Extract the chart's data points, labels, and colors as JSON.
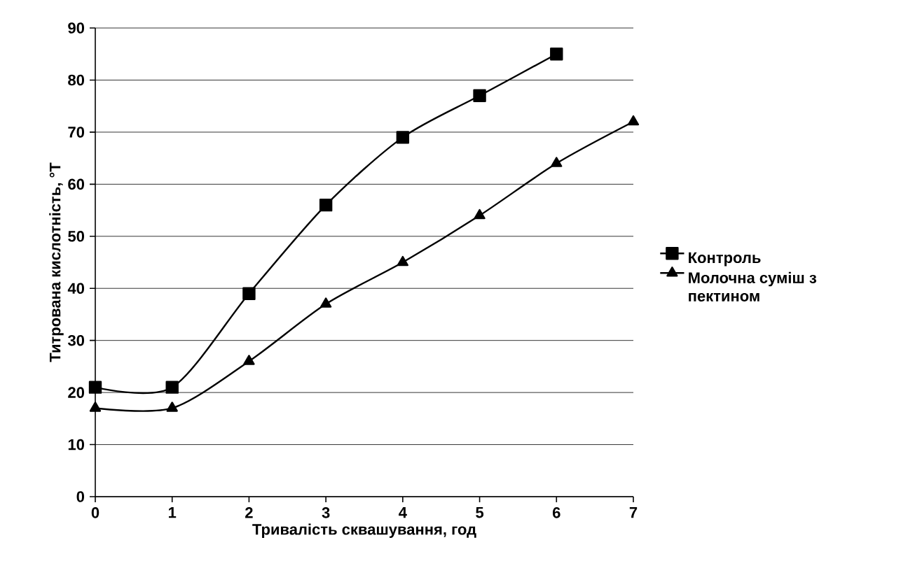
{
  "chart_data": {
    "type": "line",
    "xlabel": "Тривалість сквашування, год",
    "ylabel": "Титрована кислотність, °Т",
    "xlim": [
      0,
      7
    ],
    "ylim": [
      0,
      90
    ],
    "xticks": [
      0,
      1,
      2,
      3,
      4,
      5,
      6,
      7
    ],
    "yticks": [
      0,
      10,
      20,
      30,
      40,
      50,
      60,
      70,
      80,
      90
    ],
    "grid": "y",
    "legend": "right",
    "line_style": "solid",
    "series": [
      {
        "name": "Контроль",
        "color": "#000000",
        "marker": "square",
        "x": [
          0,
          1,
          2,
          3,
          4,
          5,
          6
        ],
        "values": [
          21,
          21,
          39,
          56,
          69,
          77,
          85
        ]
      },
      {
        "name": "Молочна суміш з пектином",
        "color": "#000000",
        "marker": "triangle",
        "x": [
          0,
          1,
          2,
          3,
          4,
          5,
          6,
          7
        ],
        "values": [
          17,
          17,
          26,
          37,
          45,
          54,
          64,
          72
        ]
      }
    ]
  }
}
